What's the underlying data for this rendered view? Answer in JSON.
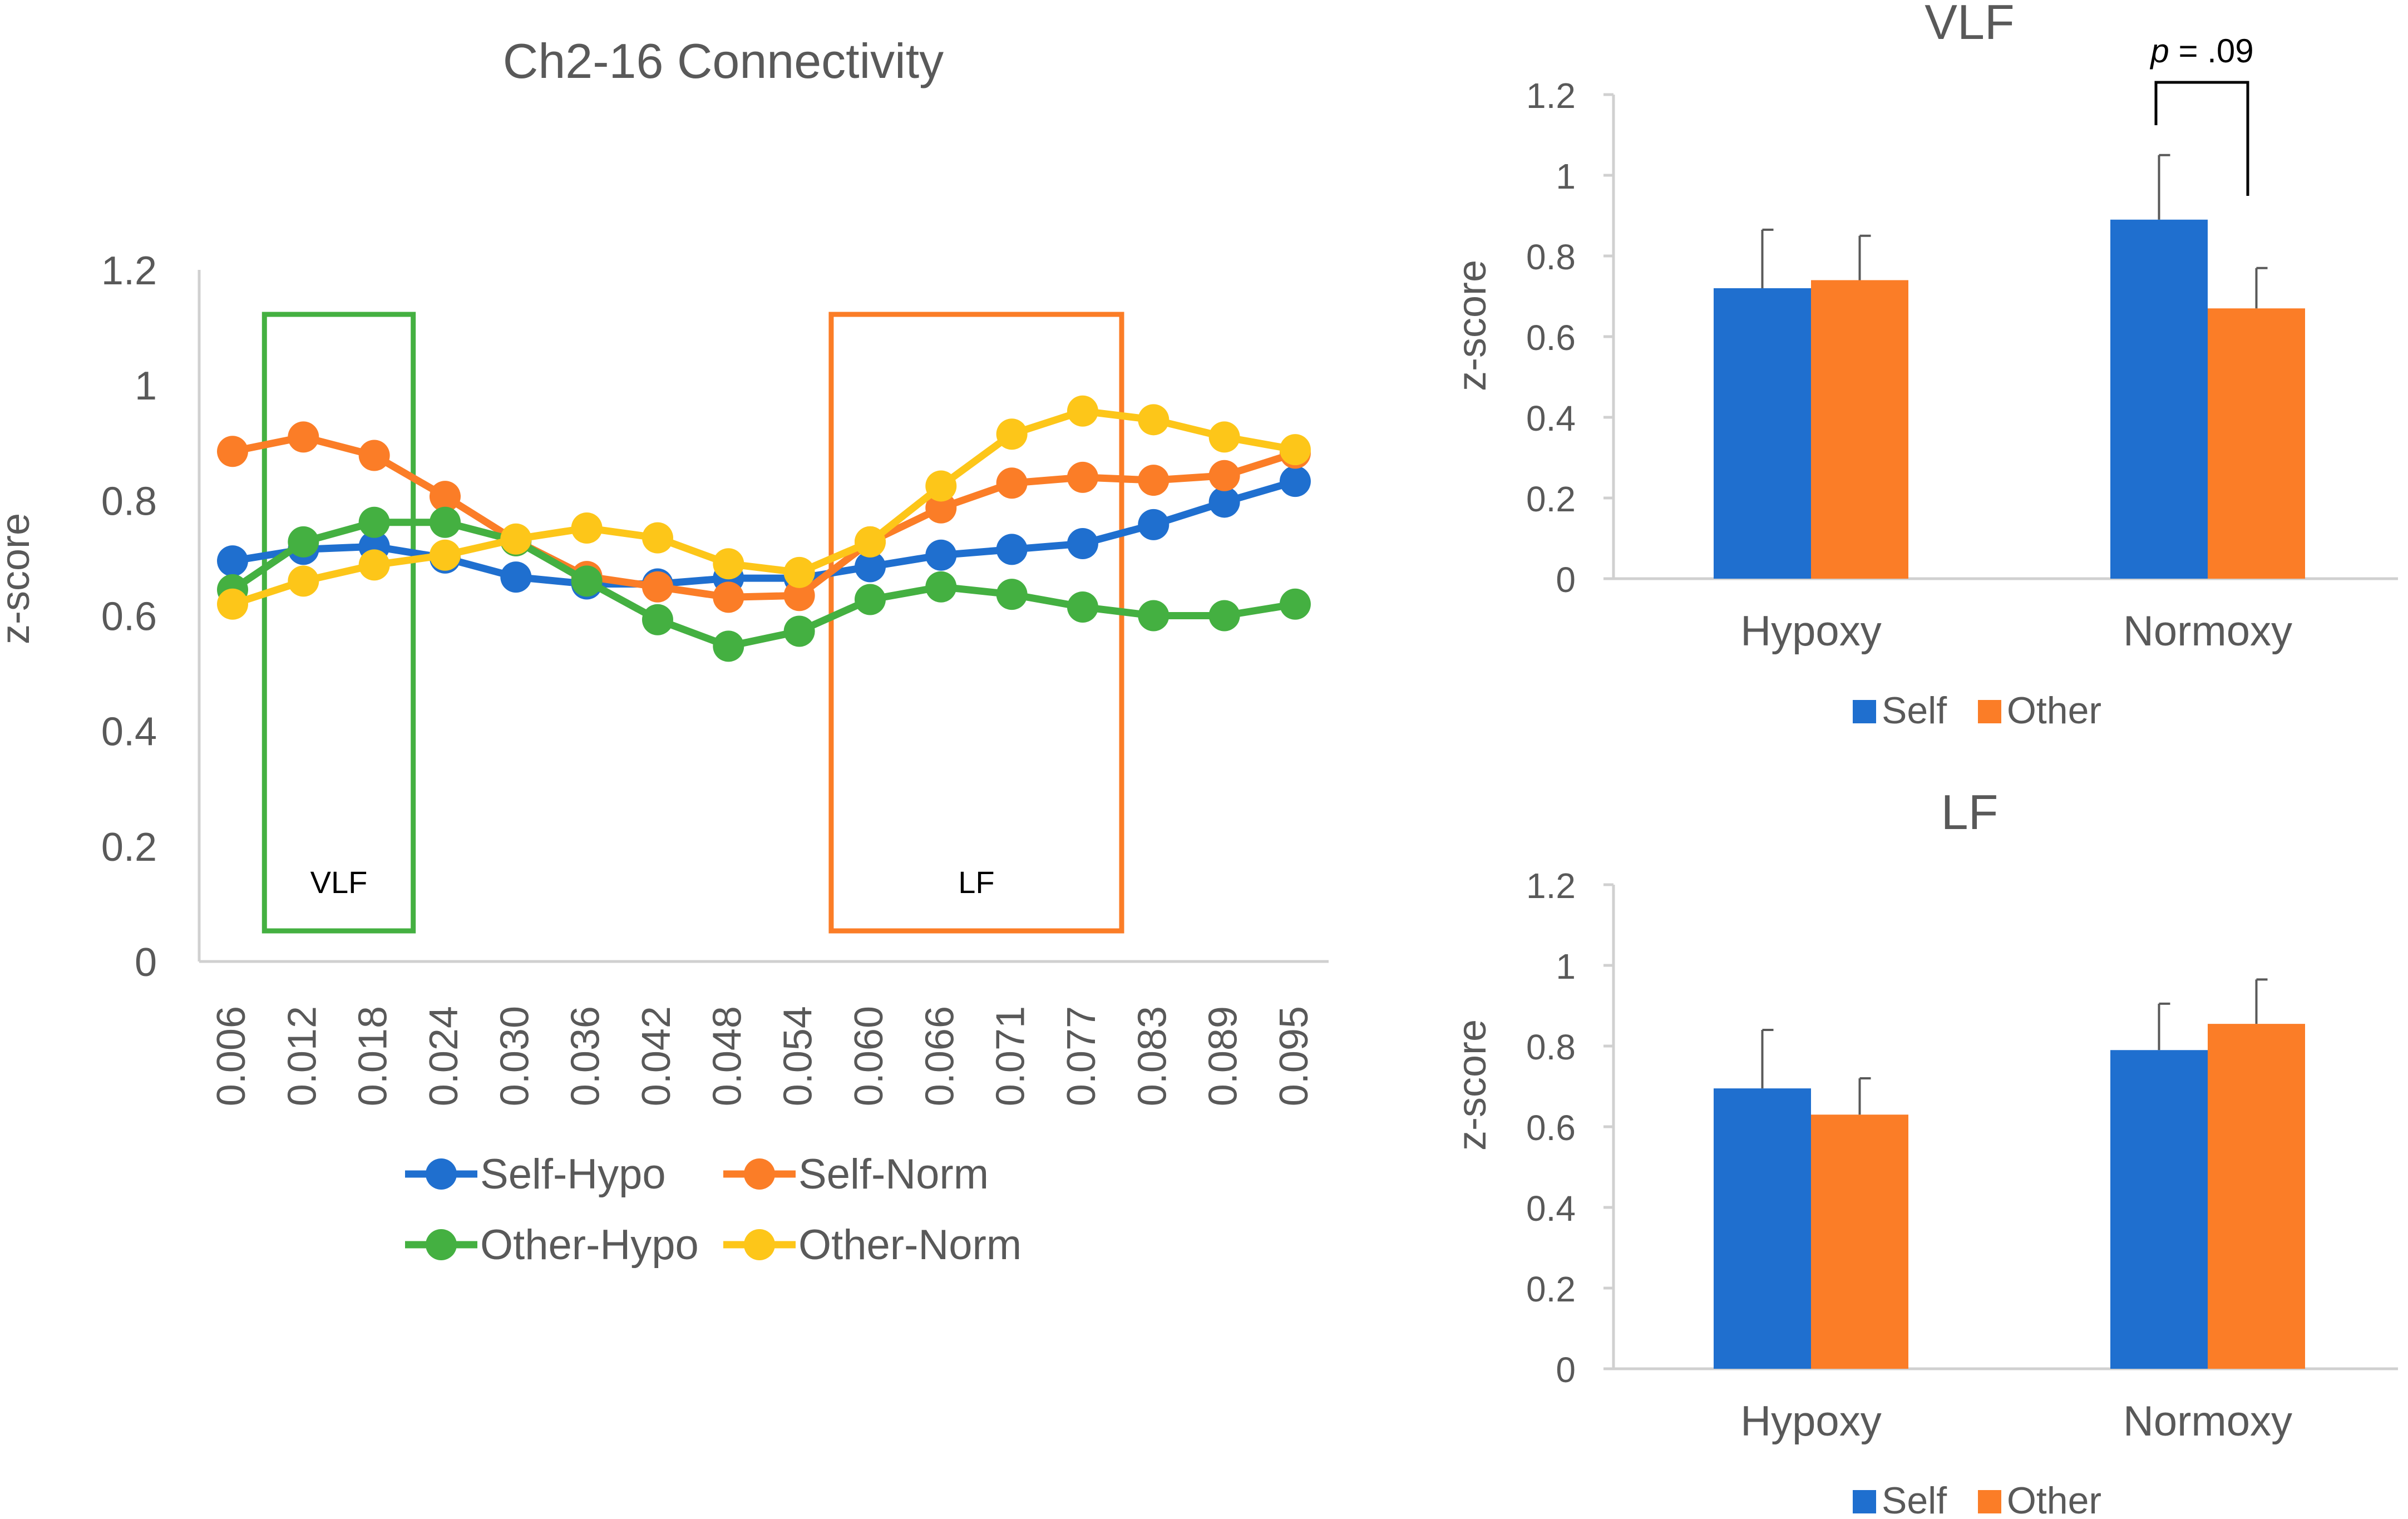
{
  "figure": {
    "colors": {
      "self": "#1f6fcf",
      "other": "#fb7d27",
      "self_hypo": "#1f6fcf",
      "self_norm": "#fb7d27",
      "other_hypo": "#44b041",
      "other_norm": "#fdc619",
      "axis": "#d0d0d0",
      "text": "#595959",
      "annotation": "#000000"
    }
  },
  "chart_data": [
    {
      "id": "connectivity",
      "type": "line",
      "title": "Ch2-16 Connectivity",
      "xlabel": "",
      "ylabel": "z-score",
      "ylim": [
        0,
        1.2
      ],
      "yticks": [
        "0",
        "0.2",
        "0.4",
        "0.6",
        "0.8",
        "1",
        "1.2"
      ],
      "x": [
        "0.006",
        "0.012",
        "0.018",
        "0.024",
        "0.030",
        "0.036",
        "0.042",
        "0.048",
        "0.054",
        "0.060",
        "0.066",
        "0.071",
        "0.077",
        "0.083",
        "0.089",
        "0.095"
      ],
      "series": [
        {
          "name": "Self-Hypo",
          "color_key": "self_hypo",
          "values": [
            0.695,
            0.715,
            0.72,
            0.7,
            0.667,
            0.655,
            0.655,
            0.665,
            0.665,
            0.685,
            0.705,
            0.715,
            0.725,
            0.758,
            0.797,
            0.833
          ]
        },
        {
          "name": "Self-Norm",
          "color_key": "self_norm",
          "values": [
            0.885,
            0.91,
            0.878,
            0.807,
            0.73,
            0.668,
            0.65,
            0.632,
            0.635,
            0.728,
            0.787,
            0.83,
            0.84,
            0.835,
            0.843,
            0.882
          ]
        },
        {
          "name": "Other-Hypo",
          "color_key": "other_hypo",
          "values": [
            0.645,
            0.728,
            0.762,
            0.762,
            0.73,
            0.66,
            0.593,
            0.547,
            0.573,
            0.628,
            0.65,
            0.637,
            0.615,
            0.6,
            0.6,
            0.62
          ]
        },
        {
          "name": "Other-Norm",
          "color_key": "other_norm",
          "values": [
            0.62,
            0.66,
            0.688,
            0.705,
            0.733,
            0.752,
            0.735,
            0.69,
            0.675,
            0.728,
            0.825,
            0.915,
            0.955,
            0.94,
            0.91,
            0.888
          ]
        }
      ],
      "bands": [
        {
          "label": "VLF",
          "color_key": "other_hypo",
          "x_from": "0.012",
          "x_to": "0.018"
        },
        {
          "label": "LF",
          "color_key": "self_norm",
          "x_from": "0.060",
          "x_to": "0.077"
        }
      ],
      "legend": [
        "Self-Hypo",
        "Self-Norm",
        "Other-Hypo",
        "Other-Norm"
      ]
    },
    {
      "id": "vlf",
      "type": "bar",
      "title": "VLF",
      "xlabel": "",
      "ylabel": "z-score",
      "ylim": [
        0,
        1.2
      ],
      "yticks": [
        "0",
        "0.2",
        "0.4",
        "0.6",
        "0.8",
        "1",
        "1.2"
      ],
      "categories": [
        "Hypoxy",
        "Normoxy"
      ],
      "series": [
        {
          "name": "Self",
          "color_key": "self",
          "values": [
            0.72,
            0.89
          ],
          "errors": [
            0.145,
            0.16
          ]
        },
        {
          "name": "Other",
          "color_key": "other",
          "values": [
            0.74,
            0.67
          ],
          "errors": [
            0.11,
            0.1
          ]
        }
      ],
      "annotation": {
        "p_label": "p",
        "p_value": " = .09",
        "category": "Normoxy"
      },
      "legend": [
        "Self",
        "Other"
      ]
    },
    {
      "id": "lf",
      "type": "bar",
      "title": "LF",
      "xlabel": "",
      "ylabel": "z-score",
      "ylim": [
        0,
        1.2
      ],
      "yticks": [
        "0",
        "0.2",
        "0.4",
        "0.6",
        "0.8",
        "1",
        "1.2"
      ],
      "categories": [
        "Hypoxy",
        "Normoxy"
      ],
      "series": [
        {
          "name": "Self",
          "color_key": "self",
          "values": [
            0.695,
            0.79
          ],
          "errors": [
            0.145,
            0.115
          ]
        },
        {
          "name": "Other",
          "color_key": "other",
          "values": [
            0.63,
            0.855
          ],
          "errors": [
            0.09,
            0.11
          ]
        }
      ],
      "legend": [
        "Self",
        "Other"
      ]
    }
  ]
}
